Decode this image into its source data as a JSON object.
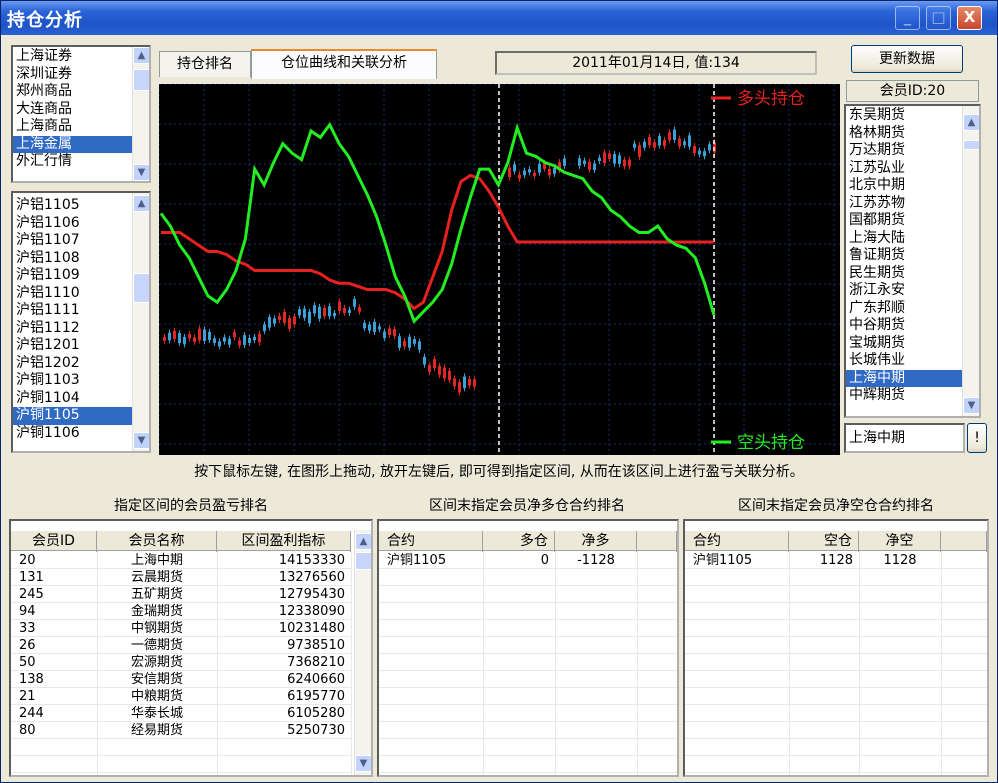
{
  "window": {
    "title": "持仓分析",
    "minimize": "_",
    "maximize": "□",
    "close": "X"
  },
  "markets": {
    "items": [
      "上海证券",
      "深圳证券",
      "郑州商品",
      "大连商品",
      "上海商品",
      "上海金属",
      "外汇行情"
    ],
    "selected_index": 5
  },
  "contracts": {
    "items": [
      "沪铝1105",
      "沪铝1106",
      "沪铝1107",
      "沪铝1108",
      "沪铝1109",
      "沪铝1110",
      "沪铝1111",
      "沪铝1112",
      "沪铝1201",
      "沪铝1202",
      "沪铜1103",
      "沪铜1104",
      "沪铜1105",
      "沪铜1106"
    ],
    "selected_index": 12
  },
  "tabs": [
    {
      "label": "持仓排名",
      "active": false
    },
    {
      "label": "仓位曲线和关联分析",
      "active": true
    }
  ],
  "status_value": "2011年01月14日, 值:134",
  "update_button": "更新数据",
  "member_id_label": "会员ID:20",
  "members": {
    "items": [
      "东吴期货",
      "格林期货",
      "万达期货",
      "江苏弘业",
      "北京中期",
      "江苏苏物",
      "国都期货",
      "上海大陆",
      "鲁证期货",
      "民生期货",
      "浙江永安",
      "广东邦顺",
      "中谷期货",
      "宝城期货",
      "长城伟业",
      "上海中期",
      "中辉期货"
    ],
    "selected_index": 15
  },
  "member_input": "上海中期",
  "member_go_button": "!",
  "chart": {
    "legend_long": "多头持仓",
    "legend_short": "空头持仓",
    "colors": {
      "long": "#e82020",
      "short": "#22ee22",
      "up": "#e02828",
      "down": "#3aa0d8",
      "bg": "#000000",
      "grid": "#16306a"
    }
  },
  "chart_data": {
    "type": "line",
    "series": [
      {
        "name": "多头持仓",
        "values": [
          0.62,
          0.62,
          0.62,
          0.6,
          0.58,
          0.56,
          0.56,
          0.55,
          0.53,
          0.52,
          0.5,
          0.5,
          0.5,
          0.5,
          0.5,
          0.5,
          0.5,
          0.49,
          0.47,
          0.46,
          0.46,
          0.45,
          0.44,
          0.44,
          0.44,
          0.43,
          0.41,
          0.38,
          0.4,
          0.48,
          0.56,
          0.69,
          0.78,
          0.8,
          0.79,
          0.75,
          0.7,
          0.64,
          0.59,
          0.59,
          0.59,
          0.59,
          0.59,
          0.59,
          0.59,
          0.59,
          0.59,
          0.59,
          0.59,
          0.59,
          0.59,
          0.59,
          0.59,
          0.59,
          0.59,
          0.59,
          0.59,
          0.59,
          0.59,
          0.59
        ]
      },
      {
        "name": "空头持仓",
        "values": [
          0.68,
          0.64,
          0.58,
          0.54,
          0.48,
          0.42,
          0.4,
          0.44,
          0.5,
          0.6,
          0.82,
          0.77,
          0.84,
          0.9,
          0.87,
          0.85,
          0.94,
          0.92,
          0.96,
          0.9,
          0.86,
          0.8,
          0.74,
          0.67,
          0.58,
          0.48,
          0.42,
          0.34,
          0.37,
          0.4,
          0.44,
          0.52,
          0.63,
          0.73,
          0.82,
          0.82,
          0.77,
          0.84,
          0.95,
          0.87,
          0.86,
          0.84,
          0.83,
          0.81,
          0.8,
          0.79,
          0.75,
          0.73,
          0.69,
          0.67,
          0.64,
          0.62,
          0.62,
          0.64,
          0.6,
          0.58,
          0.57,
          0.54,
          0.46,
          0.36
        ]
      }
    ]
  },
  "hint": "按下鼠标左键, 在图形上拖动, 放开左键后, 即可得到指定区间, 从而在该区间上进行盈亏关联分析。",
  "section_titles": [
    "指定区间的会员盈亏排名",
    "区间末指定会员净多仓合约排名",
    "区间末指定会员净空仓合约排名"
  ],
  "ranking": {
    "columns": [
      "会员ID",
      "会员名称",
      "区间盈利指标"
    ],
    "rows": [
      [
        "20",
        "上海中期",
        "14153330"
      ],
      [
        "131",
        "云晨期货",
        "13276560"
      ],
      [
        "245",
        "五矿期货",
        "12795430"
      ],
      [
        "94",
        "金瑞期货",
        "12338090"
      ],
      [
        "33",
        "中钢期货",
        "10231480"
      ],
      [
        "26",
        "一德期货",
        "9738510"
      ],
      [
        "50",
        "宏源期货",
        "7368210"
      ],
      [
        "138",
        "安信期货",
        "6240660"
      ],
      [
        "21",
        "中粮期货",
        "6195770"
      ],
      [
        "244",
        "华泰长城",
        "6105280"
      ],
      [
        "80",
        "经易期货",
        "5250730"
      ]
    ]
  },
  "net_long": {
    "columns": [
      "合约",
      "多仓",
      "净多"
    ],
    "rows": [
      [
        "沪铜1105",
        "0",
        "-1128"
      ]
    ]
  },
  "net_short": {
    "columns": [
      "合约",
      "空仓",
      "净空"
    ],
    "rows": [
      [
        "沪铜1105",
        "1128",
        "1128"
      ]
    ]
  }
}
